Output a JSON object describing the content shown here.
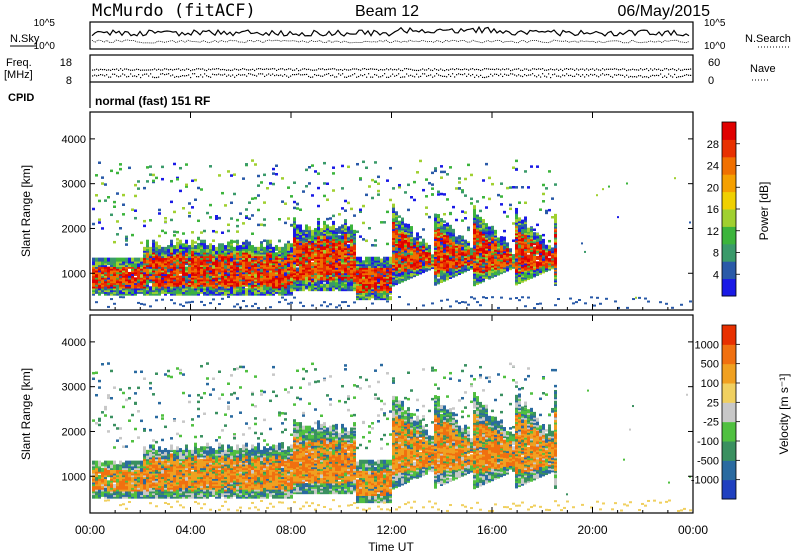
{
  "header": {
    "station": "McMurdo (fitACF)",
    "beam": "Beam 12",
    "date": "06/May/2015"
  },
  "summary_panels": {
    "nsky_label": "N.Sky",
    "nsky_ticks": [
      "10^5",
      "10^0"
    ],
    "nsearch_label": "N.Search",
    "nsearch_ticks": [
      "10^5",
      "10^0"
    ],
    "freq_label_1": "Freq.",
    "freq_label_2": "[MHz]",
    "freq_ticks": [
      "18",
      "8"
    ],
    "nave_label": "Nave",
    "nave_ticks": [
      "60",
      "0"
    ],
    "cpid_label": "CPID",
    "cpid_text": "normal (fast) 151 RF"
  },
  "chart_data": [
    {
      "type": "heatmap",
      "name": "power",
      "ylabel": "Slant Range [km]",
      "xlabel": "Time UT",
      "ylim": [
        180,
        4600
      ],
      "yticks": [
        "1000",
        "2000",
        "3000",
        "4000"
      ],
      "xticks": [
        "00:00",
        "04:00",
        "08:00",
        "12:00",
        "16:00",
        "20:00",
        "00:00"
      ],
      "colorbar": {
        "label": "Power [dB]",
        "ticks": [
          "4",
          "8",
          "12",
          "16",
          "20",
          "24",
          "28"
        ],
        "colors": [
          "#1a1ae6",
          "#2a5aa8",
          "#3a9a6a",
          "#3cb43c",
          "#a0d030",
          "#f0d000",
          "#f5a000",
          "#f07000",
          "#e83000",
          "#e00000"
        ]
      }
    },
    {
      "type": "heatmap",
      "name": "velocity",
      "ylabel": "Slant Range [km]",
      "xlabel": "Time UT",
      "ylim": [
        180,
        4600
      ],
      "yticks": [
        "1000",
        "2000",
        "3000",
        "4000"
      ],
      "xticks": [
        "00:00",
        "04:00",
        "08:00",
        "12:00",
        "16:00",
        "20:00",
        "00:00"
      ],
      "colorbar": {
        "label": "Velocity [m s⁻¹]",
        "ticks": [
          "1000",
          "500",
          "100",
          "25",
          "-25",
          "-100",
          "-500",
          "-1000"
        ],
        "colors": [
          "#2040c0",
          "#2a6aa0",
          "#3a9060",
          "#50c040",
          "#c8c8c8",
          "#f0d060",
          "#f0a020",
          "#f07010",
          "#e83000"
        ]
      }
    }
  ]
}
